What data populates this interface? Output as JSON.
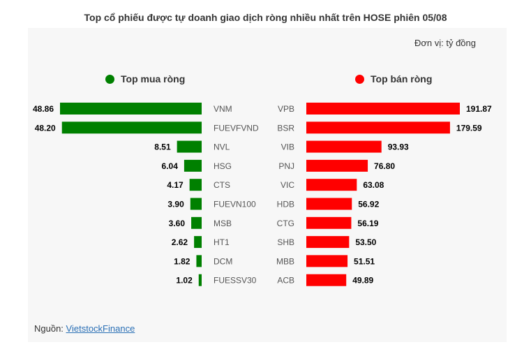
{
  "title": "Top cổ phiếu được tự doanh giao dịch ròng nhiều nhất trên HOSE phiên 05/08",
  "unit": "Đơn vị: tỷ đồng",
  "source_prefix": "Nguồn: ",
  "source_link": "VietstockFinance",
  "colors": {
    "buy": "#008000",
    "sell": "#ff0000",
    "text": "#333333"
  },
  "chart_data": [
    {
      "type": "bar",
      "title": "Top mua ròng",
      "orientation": "horizontal",
      "categories": [
        "VNM",
        "FUEVFVND",
        "NVL",
        "HSG",
        "CTS",
        "FUEVN100",
        "MSB",
        "HT1",
        "DCM",
        "FUESSV30"
      ],
      "values": [
        48.86,
        48.2,
        8.51,
        6.04,
        4.17,
        3.9,
        3.6,
        2.62,
        1.82,
        1.02
      ],
      "labels": [
        "48.86",
        "48.20",
        "8.51",
        "6.04",
        "4.17",
        "3.90",
        "3.60",
        "2.62",
        "1.82",
        "1.02"
      ],
      "color": "#008000"
    },
    {
      "type": "bar",
      "title": "Top bán ròng",
      "orientation": "horizontal",
      "categories": [
        "VPB",
        "BSR",
        "VIB",
        "PNJ",
        "VIC",
        "HDB",
        "CTG",
        "SHB",
        "MBB",
        "ACB"
      ],
      "values": [
        191.87,
        179.59,
        93.93,
        76.8,
        63.08,
        56.92,
        56.19,
        53.5,
        51.51,
        49.89
      ],
      "labels": [
        "191.87",
        "179.59",
        "93.93",
        "76.80",
        "63.08",
        "56.92",
        "56.19",
        "53.50",
        "51.51",
        "49.89"
      ],
      "color": "#ff0000"
    }
  ]
}
